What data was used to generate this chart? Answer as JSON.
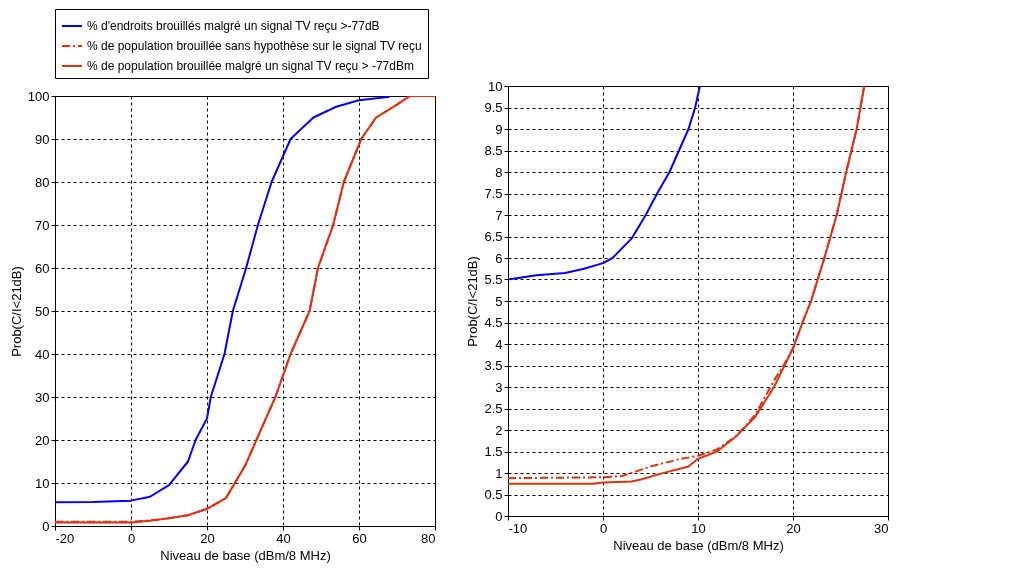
{
  "chart_data": [
    {
      "type": "line",
      "xlabel": "Niveau de base (dBm/8 MHz)",
      "ylabel": "Prob(C/I<21dB)",
      "xlim": [
        -20,
        80
      ],
      "ylim": [
        0,
        100
      ],
      "xticks": [
        -20,
        0,
        20,
        40,
        60,
        80
      ],
      "yticks": [
        0,
        10,
        20,
        30,
        40,
        50,
        60,
        70,
        80,
        90,
        100
      ],
      "grid": true,
      "legend": "top left",
      "series": [
        {
          "name": "% d'endroits brouillés malgré un signal TV reçu >-77dB",
          "color": "#0000ff",
          "line_style": "solid",
          "x": [
            -20,
            -10,
            0,
            5,
            10,
            15,
            17,
            20,
            21,
            24.6,
            26.8,
            30.3,
            33.4,
            37,
            42,
            48,
            54,
            60,
            68
          ],
          "values": [
            5.5,
            5.6,
            5.9,
            6.8,
            9.5,
            15,
            20,
            25,
            30,
            40,
            50,
            60,
            70,
            80,
            90,
            95,
            97.5,
            99,
            99.8
          ]
        },
        {
          "name": "% de population brouillée sans hypothèse sur le signal TV reçu",
          "color": "#e03010",
          "line_style": "dashdot",
          "x": [
            -20,
            0,
            5,
            10,
            15,
            20,
            25,
            27,
            30,
            33,
            36,
            38,
            40,
            42,
            44.5,
            47,
            49.2,
            53.2,
            56,
            60.6,
            64.5,
            70,
            73.4,
            80
          ],
          "values": [
            1.0,
            1.0,
            1.3,
            1.8,
            2.5,
            4,
            6.5,
            9.5,
            14,
            20,
            26,
            30,
            35,
            40,
            45,
            50,
            60,
            70,
            80,
            90,
            95,
            98,
            100,
            100
          ]
        },
        {
          "name": "% de population brouillée malgré un signal TV reçu > -77dBm",
          "color": "#e03010",
          "line_style": "solid",
          "x": [
            -20,
            0,
            5,
            10,
            15,
            20,
            25,
            27,
            30,
            33,
            36,
            38,
            40,
            42,
            44.5,
            47,
            49.2,
            53.2,
            56,
            60.6,
            64.5,
            70,
            73.4,
            80
          ],
          "values": [
            0.8,
            0.8,
            1.2,
            1.8,
            2.5,
            4,
            6.5,
            9.5,
            14,
            20,
            26,
            30,
            35,
            40,
            45,
            50,
            60,
            70,
            80,
            90,
            95,
            98,
            100,
            100
          ]
        }
      ]
    },
    {
      "type": "line",
      "xlabel": "Niveau de base (dBm/8 MHz)",
      "ylabel": "Prob(C/I<21dB)",
      "xlim": [
        -10,
        30
      ],
      "ylim": [
        0,
        10
      ],
      "xticks": [
        -10,
        0,
        10,
        20,
        30
      ],
      "yticks": [
        0,
        0.5,
        1,
        1.5,
        2,
        2.5,
        3,
        3.5,
        4,
        4.5,
        5,
        5.5,
        6,
        6.5,
        7,
        7.5,
        8,
        8.5,
        9,
        9.5,
        10
      ],
      "grid": true,
      "series": [
        {
          "color": "#0000ff",
          "line_style": "solid",
          "x": [
            -10,
            -7,
            -4,
            -2,
            0,
            1,
            3,
            4.5,
            5.7,
            7,
            8,
            9,
            9.7,
            10.2
          ],
          "values": [
            5.5,
            5.6,
            5.65,
            5.75,
            5.88,
            6.0,
            6.45,
            7.0,
            7.5,
            8.0,
            8.5,
            9.0,
            9.5,
            10
          ]
        },
        {
          "color": "#e03010",
          "line_style": "dashdot",
          "x": [
            -10,
            0,
            2,
            5,
            8,
            10,
            12,
            14,
            16,
            18,
            19,
            20,
            21,
            21.9,
            23.3,
            24.6,
            25.6,
            26.7,
            27.5
          ],
          "values": [
            0.88,
            0.9,
            0.93,
            1.15,
            1.32,
            1.4,
            1.55,
            1.85,
            2.35,
            3.15,
            3.5,
            3.9,
            4.5,
            5,
            6,
            7,
            8,
            9,
            10
          ]
        },
        {
          "color": "#e03010",
          "line_style": "solid",
          "x": [
            -10,
            -1,
            0,
            3,
            4,
            6,
            9,
            10,
            12,
            14,
            16,
            18,
            20,
            21,
            21.9,
            23.3,
            24.6,
            25.6,
            26.7,
            27.5
          ],
          "values": [
            0.75,
            0.75,
            0.78,
            0.8,
            0.85,
            0.98,
            1.15,
            1.33,
            1.5,
            1.85,
            2.3,
            3.0,
            3.9,
            4.5,
            5,
            6,
            7,
            8,
            9,
            10
          ]
        }
      ]
    }
  ]
}
